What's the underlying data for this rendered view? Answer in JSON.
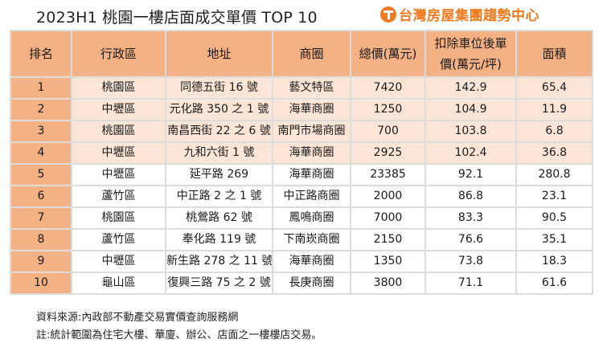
{
  "title": "2023H1 桃園一樓店面成交單價 TOP 10",
  "brand": {
    "name": "台灣房屋集團趨勢中心",
    "logo_icon": "taiwan-realty-logo-icon",
    "color": "#f07a20"
  },
  "colors": {
    "header_bg": "#f4b183",
    "highlight_row_bg": "#fbe5d6",
    "border": "#dcdcdc"
  },
  "table": {
    "headers": [
      "排名",
      "行政區",
      "地址",
      "商圈",
      "總價(萬元)",
      "扣除車位後單價(萬元/坪)",
      "面積"
    ],
    "header_unit_price_line1": "扣除車位後單",
    "header_unit_price_line2": "價(萬元/坪)",
    "rows": [
      {
        "rank": "1",
        "district": "桃園區",
        "address": "同德五街 16 號",
        "area_name": "藝文特區",
        "total": "7420",
        "unit_price": "142.9",
        "size": "65.4"
      },
      {
        "rank": "2",
        "district": "中壢區",
        "address": "元化路 350 之 1 號",
        "area_name": "海華商圈",
        "total": "1250",
        "unit_price": "104.9",
        "size": "11.9"
      },
      {
        "rank": "3",
        "district": "桃園區",
        "address": "南昌西街 22 之 6 號",
        "area_name": "南門市場商圈",
        "total": "700",
        "unit_price": "103.8",
        "size": "6.8"
      },
      {
        "rank": "4",
        "district": "中壢區",
        "address": "九和六街 1 號",
        "area_name": "海華商圈",
        "total": "2925",
        "unit_price": "102.4",
        "size": "36.8"
      },
      {
        "rank": "5",
        "district": "中壢區",
        "address": "延平路 269",
        "area_name": "海華商圈",
        "total": "23385",
        "unit_price": "92.1",
        "size": "280.8"
      },
      {
        "rank": "6",
        "district": "蘆竹區",
        "address": "中正路 2 之 1 號",
        "area_name": "中正路商圈",
        "total": "2000",
        "unit_price": "86.8",
        "size": "23.1"
      },
      {
        "rank": "7",
        "district": "桃園區",
        "address": "桃鶯路 62 號",
        "area_name": "鳳鳴商圈",
        "total": "7000",
        "unit_price": "83.3",
        "size": "90.5"
      },
      {
        "rank": "8",
        "district": "蘆竹區",
        "address": "奉化路 119 號",
        "area_name": "下南崁商圈",
        "total": "2150",
        "unit_price": "76.6",
        "size": "35.1"
      },
      {
        "rank": "9",
        "district": "中壢區",
        "address": "新生路 278 之 11 號",
        "area_name": "海華商圈",
        "total": "1350",
        "unit_price": "73.8",
        "size": "18.3"
      },
      {
        "rank": "10",
        "district": "龜山區",
        "address": "復興三路 75 之 2 號",
        "area_name": "長庚商圈",
        "total": "3800",
        "unit_price": "71.1",
        "size": "61.6"
      }
    ]
  },
  "notes": {
    "source": "資料來源:內政部不動產交易實價查詢服務網",
    "remark": "註:統計範圍為住宅大樓、華廈、辦公、店面之一樓樓店交易。"
  }
}
